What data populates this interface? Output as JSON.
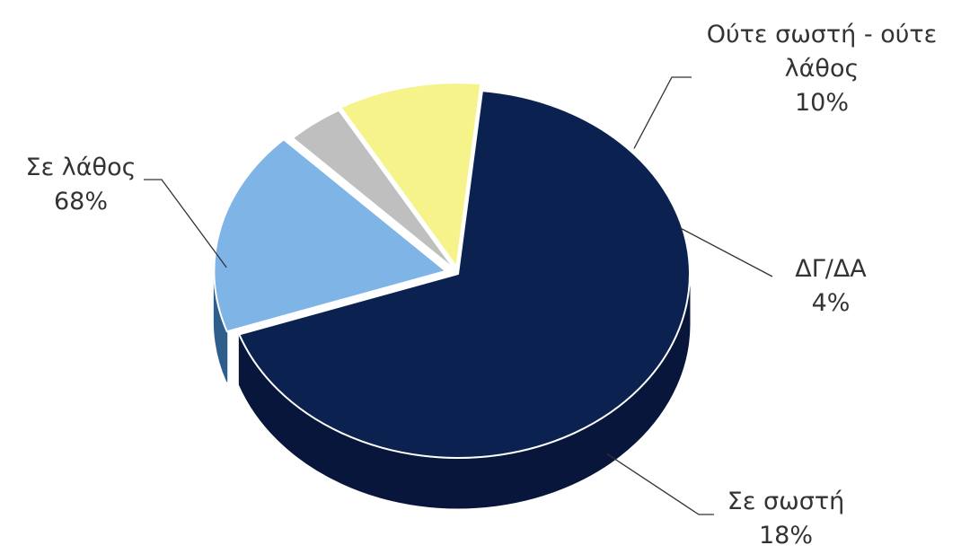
{
  "chart_data": {
    "type": "pie",
    "style": "3d-exploded",
    "slices": [
      {
        "label": "Σε λάθος",
        "value": 68,
        "value_text": "68%",
        "color": "#0b2250",
        "side_color": "#07163a"
      },
      {
        "label": "Σε σωστή",
        "value": 18,
        "value_text": "18%",
        "color": "#7fb4e6",
        "side_color": "#2f5d8c"
      },
      {
        "label": "ΔΓ/ΔΑ",
        "value": 4,
        "value_text": "4%",
        "color": "#bfbfbf",
        "side_color": "#8c8c8c"
      },
      {
        "label": "Ούτε σωστή - ούτε λάθος",
        "label_lines": [
          "Ούτε σωστή - ούτε",
          "λάθος"
        ],
        "value": 10,
        "value_text": "10%",
        "color": "#f5f38a",
        "side_color": "#c9c660"
      }
    ],
    "leader_color": "#333333"
  }
}
